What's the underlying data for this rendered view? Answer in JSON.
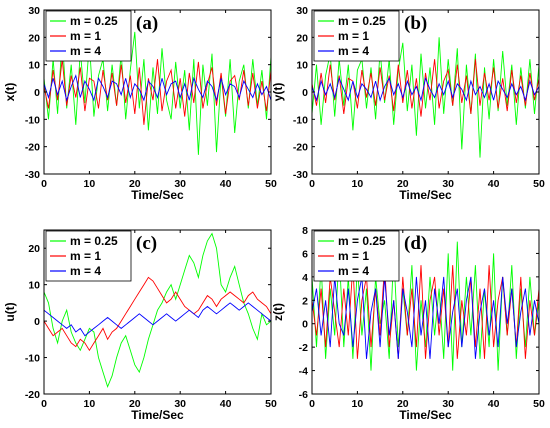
{
  "legend_labels": [
    "m = 0.25",
    "m = 1",
    "m = 4"
  ],
  "series_colors": [
    "#00ff00",
    "#ff0000",
    "#0000ff"
  ],
  "chart_data": [
    {
      "type": "line",
      "panel_tag": "(a)",
      "xlabel": "Time/Sec",
      "ylabel": "x(t)",
      "xlim": [
        0,
        50
      ],
      "ylim": [
        -30,
        30
      ],
      "xticks": [
        0,
        10,
        20,
        30,
        40,
        50
      ],
      "yticks": [
        -30,
        -20,
        -10,
        0,
        10,
        20,
        30
      ],
      "x": [
        0,
        1,
        2,
        3,
        4,
        5,
        6,
        7,
        8,
        9,
        10,
        11,
        12,
        13,
        14,
        15,
        16,
        17,
        18,
        19,
        20,
        21,
        22,
        23,
        24,
        25,
        26,
        27,
        28,
        29,
        30,
        31,
        32,
        33,
        34,
        35,
        36,
        37,
        38,
        39,
        40,
        41,
        42,
        43,
        44,
        45,
        46,
        47,
        48,
        49,
        50
      ],
      "series": [
        {
          "name": "m = 0.25",
          "values": [
            5,
            -10,
            12,
            -8,
            20,
            -6,
            10,
            -12,
            15,
            -4,
            18,
            -9,
            6,
            12,
            -7,
            10,
            -5,
            14,
            -10,
            8,
            22,
            -6,
            12,
            -14,
            9,
            -8,
            16,
            -3,
            -10,
            11,
            -6,
            8,
            -14,
            12,
            -23,
            10,
            -5,
            14,
            -22,
            6,
            -9,
            12,
            -15,
            4,
            10,
            -6,
            12,
            -5,
            8,
            -10,
            13
          ]
        },
        {
          "name": "m = 1",
          "values": [
            2,
            -6,
            8,
            -3,
            12,
            -5,
            6,
            -2,
            9,
            -7,
            5,
            4,
            -6,
            8,
            -3,
            7,
            -5,
            10,
            -4,
            6,
            -8,
            9,
            -12,
            5,
            -3,
            12,
            -7,
            4,
            8,
            -6,
            5,
            -9,
            7,
            -4,
            11,
            -6,
            3,
            9,
            -5,
            7,
            -8,
            4,
            6,
            -3,
            8,
            -5,
            7,
            -6,
            4,
            -7,
            8
          ]
        },
        {
          "name": "m = 4",
          "values": [
            3,
            -2,
            5,
            -1,
            4,
            -3,
            2,
            6,
            -2,
            4,
            1,
            -3,
            5,
            2,
            -2,
            4,
            3,
            -1,
            5,
            -2,
            3,
            1,
            -3,
            4,
            2,
            -2,
            5,
            -1,
            3,
            4,
            -2,
            3,
            -3,
            5,
            1,
            -2,
            4,
            2,
            -3,
            5,
            -1,
            3,
            2,
            -2,
            4,
            1,
            -2,
            3,
            -1,
            2,
            -3
          ]
        }
      ]
    },
    {
      "type": "line",
      "panel_tag": "(b)",
      "xlabel": "Time/Sec",
      "ylabel": "y(t)",
      "xlim": [
        0,
        50
      ],
      "ylim": [
        -30,
        30
      ],
      "xticks": [
        0,
        10,
        20,
        30,
        40,
        50
      ],
      "yticks": [
        -30,
        -20,
        -10,
        0,
        10,
        20,
        30
      ],
      "x": [
        0,
        1,
        2,
        3,
        4,
        5,
        6,
        7,
        8,
        9,
        10,
        11,
        12,
        13,
        14,
        15,
        16,
        17,
        18,
        19,
        20,
        21,
        22,
        23,
        24,
        25,
        26,
        27,
        28,
        29,
        30,
        31,
        32,
        33,
        34,
        35,
        36,
        37,
        38,
        39,
        40,
        41,
        42,
        43,
        44,
        45,
        46,
        47,
        48,
        49,
        50
      ],
      "series": [
        {
          "name": "m = 0.25",
          "values": [
            -8,
            10,
            -12,
            6,
            14,
            -9,
            12,
            -5,
            10,
            -14,
            8,
            12,
            -6,
            9,
            -10,
            15,
            -4,
            12,
            -12,
            8,
            18,
            -7,
            10,
            -16,
            14,
            -6,
            9,
            -12,
            20,
            -8,
            12,
            -5,
            16,
            -21,
            10,
            -8,
            14,
            -24,
            9,
            -10,
            12,
            -7,
            15,
            -5,
            10,
            -12,
            9,
            -6,
            12,
            -8,
            10
          ]
        },
        {
          "name": "m = 1",
          "values": [
            3,
            -5,
            7,
            -4,
            10,
            -3,
            6,
            -8,
            5,
            4,
            -6,
            8,
            -2,
            7,
            -5,
            9,
            -3,
            6,
            -7,
            10,
            -4,
            8,
            -6,
            5,
            -9,
            7,
            -3,
            12,
            -6,
            4,
            8,
            -5,
            10,
            -4,
            6,
            -8,
            12,
            -5,
            7,
            -3,
            9,
            -6,
            5,
            -7,
            8,
            -4,
            6,
            -5,
            7,
            -3,
            5
          ]
        },
        {
          "name": "m = 4",
          "values": [
            2,
            -3,
            4,
            -1,
            3,
            -2,
            5,
            1,
            -3,
            4,
            -2,
            3,
            1,
            -2,
            4,
            -3,
            2,
            5,
            -1,
            3,
            -2,
            4,
            -1,
            2,
            -3,
            5,
            1,
            -2,
            3,
            -1,
            4,
            -2,
            3,
            1,
            -3,
            4,
            -1,
            2,
            -2,
            3,
            -3,
            4,
            1,
            -2,
            3,
            -1,
            2,
            -3,
            4,
            -1,
            2
          ]
        }
      ]
    },
    {
      "type": "line",
      "panel_tag": "(c)",
      "xlabel": "Time/Sec",
      "ylabel": "u(t)",
      "xlim": [
        0,
        50
      ],
      "ylim": [
        -20,
        25
      ],
      "xticks": [
        0,
        10,
        20,
        30,
        40,
        50
      ],
      "yticks": [
        -20,
        -10,
        0,
        10,
        20
      ],
      "x": [
        0,
        1,
        2,
        3,
        4,
        5,
        6,
        7,
        8,
        9,
        10,
        11,
        12,
        13,
        14,
        15,
        16,
        17,
        18,
        19,
        20,
        21,
        22,
        23,
        24,
        25,
        26,
        27,
        28,
        29,
        30,
        31,
        32,
        33,
        34,
        35,
        36,
        37,
        38,
        39,
        40,
        41,
        42,
        43,
        44,
        45,
        46,
        47,
        48,
        49,
        50
      ],
      "series": [
        {
          "name": "m = 0.25",
          "values": [
            8,
            5,
            -2,
            -6,
            0,
            3,
            -3,
            -6,
            -8,
            -5,
            -2,
            -3,
            -10,
            -14,
            -18,
            -15,
            -10,
            -6,
            -4,
            -8,
            -12,
            -14,
            -10,
            -5,
            -1,
            3,
            5,
            8,
            10,
            6,
            10,
            14,
            18,
            16,
            12,
            18,
            22,
            24,
            20,
            10,
            8,
            12,
            15,
            10,
            5,
            2,
            -2,
            -5,
            2,
            -1,
            0
          ]
        },
        {
          "name": "m = 1",
          "values": [
            0,
            -2,
            -4,
            -3,
            -2,
            -4,
            -6,
            -7,
            -5,
            -6,
            -8,
            -6,
            -4,
            -2,
            -5,
            -3,
            -2,
            0,
            2,
            4,
            6,
            8,
            10,
            12,
            11,
            9,
            7,
            5,
            6,
            8,
            6,
            4,
            3,
            2,
            3,
            5,
            7,
            6,
            4,
            6,
            7,
            8,
            7,
            6,
            5,
            7,
            8,
            6,
            5,
            4,
            2
          ]
        },
        {
          "name": "m = 4",
          "values": [
            3,
            2,
            1,
            0,
            -1,
            -2,
            -1,
            -3,
            -2,
            -4,
            -3,
            -2,
            -1,
            0,
            1,
            0,
            -1,
            -2,
            -1,
            0,
            1,
            2,
            1,
            0,
            -1,
            0,
            1,
            2,
            1,
            0,
            1,
            2,
            3,
            2,
            1,
            3,
            4,
            3,
            2,
            3,
            4,
            5,
            4,
            3,
            4,
            5,
            4,
            3,
            2,
            1,
            0
          ]
        }
      ]
    },
    {
      "type": "line",
      "panel_tag": "(d)",
      "xlabel": "Time/Sec",
      "ylabel": "z(t)",
      "xlim": [
        0,
        50
      ],
      "ylim": [
        -6,
        8
      ],
      "xticks": [
        0,
        10,
        20,
        30,
        40,
        50
      ],
      "yticks": [
        -6,
        -4,
        -2,
        0,
        2,
        4,
        6,
        8
      ],
      "x": [
        0,
        1,
        2,
        3,
        4,
        5,
        6,
        7,
        8,
        9,
        10,
        11,
        12,
        13,
        14,
        15,
        16,
        17,
        18,
        19,
        20,
        21,
        22,
        23,
        24,
        25,
        26,
        27,
        28,
        29,
        30,
        31,
        32,
        33,
        34,
        35,
        36,
        37,
        38,
        39,
        40,
        41,
        42,
        43,
        44,
        45,
        46,
        47,
        48,
        49,
        50
      ],
      "series": [
        {
          "name": "m = 0.25",
          "values": [
            4,
            -2,
            5,
            -3,
            3,
            -1,
            6,
            -2,
            4,
            -3,
            5,
            -1,
            3,
            -4,
            4,
            0,
            2,
            -3,
            6,
            -2,
            3,
            -1,
            5,
            -4,
            2,
            -2,
            4,
            -1,
            3,
            -3,
            6,
            -4,
            7,
            -2,
            4,
            -1,
            5,
            -3,
            3,
            -2,
            6,
            -4,
            4,
            -1,
            5,
            -3,
            3,
            -2,
            4,
            -1,
            2
          ]
        },
        {
          "name": "m = 1",
          "values": [
            2,
            -1,
            3,
            -2,
            4,
            1,
            -2,
            3,
            -1,
            5,
            -3,
            2,
            4,
            -2,
            3,
            -1,
            5,
            -2,
            2,
            -3,
            4,
            -1,
            3,
            -2,
            5,
            -3,
            2,
            4,
            -1,
            3,
            -2,
            5,
            -3,
            2,
            -1,
            4,
            -2,
            3,
            -3,
            5,
            -2,
            2,
            4,
            -1,
            3,
            -2,
            4,
            -3,
            2,
            -1,
            3
          ]
        },
        {
          "name": "m = 4",
          "values": [
            1,
            3,
            -1,
            2,
            -2,
            4,
            0,
            -1,
            3,
            -2,
            2,
            4,
            -3,
            1,
            3,
            -2,
            4,
            -1,
            2,
            -3,
            3,
            1,
            -2,
            4,
            -1,
            2,
            -3,
            3,
            0,
            4,
            -2,
            1,
            3,
            -2,
            2,
            4,
            -3,
            1,
            3,
            -1,
            2,
            -2,
            4,
            0,
            3,
            -2,
            1,
            3,
            -1,
            2,
            0
          ]
        }
      ]
    }
  ]
}
